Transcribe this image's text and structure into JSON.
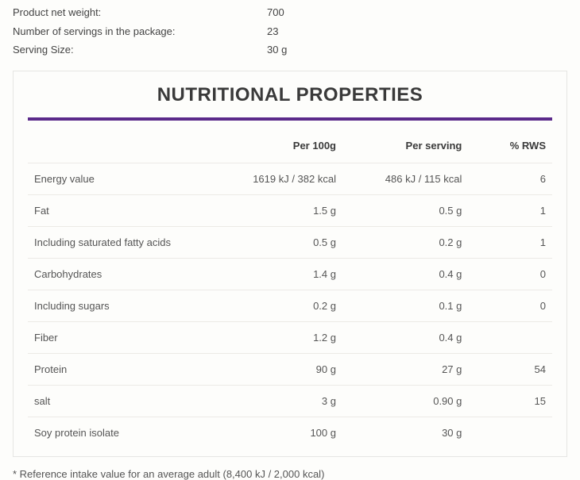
{
  "meta": {
    "rows": [
      {
        "label": "Product net weight:",
        "value": "700"
      },
      {
        "label": "Number of servings in the package:",
        "value": "23"
      },
      {
        "label": "Serving Size:",
        "value": "30 g"
      }
    ]
  },
  "panel": {
    "title": "NUTRITIONAL PROPERTIES",
    "accent_color": "#5b2a8a"
  },
  "table": {
    "type": "table",
    "columns": [
      "",
      "Per 100g",
      "Per serving",
      "% RWS"
    ],
    "rows": [
      {
        "name": "Energy value",
        "per100": "1619 kJ / 382 kcal",
        "perServing": "486 kJ / 115 kcal",
        "rws": "6"
      },
      {
        "name": "Fat",
        "per100": "1.5 g",
        "perServing": "0.5 g",
        "rws": "1"
      },
      {
        "name": "Including saturated fatty acids",
        "per100": "0.5 g",
        "perServing": "0.2 g",
        "rws": "1"
      },
      {
        "name": "Carbohydrates",
        "per100": "1.4 g",
        "perServing": "0.4 g",
        "rws": "0"
      },
      {
        "name": "Including sugars",
        "per100": "0.2 g",
        "perServing": "0.1 g",
        "rws": "0"
      },
      {
        "name": "Fiber",
        "per100": "1.2 g",
        "perServing": "0.4 g",
        "rws": ""
      },
      {
        "name": "Protein",
        "per100": "90 g",
        "perServing": "27 g",
        "rws": "54"
      },
      {
        "name": "salt",
        "per100": "3 g",
        "perServing": "0.90 g",
        "rws": "15"
      },
      {
        "name": "Soy protein isolate",
        "per100": "100 g",
        "perServing": "30 g",
        "rws": ""
      }
    ]
  },
  "footnote": "* Reference intake value for an average adult (8,400 kJ / 2,000 kcal)"
}
